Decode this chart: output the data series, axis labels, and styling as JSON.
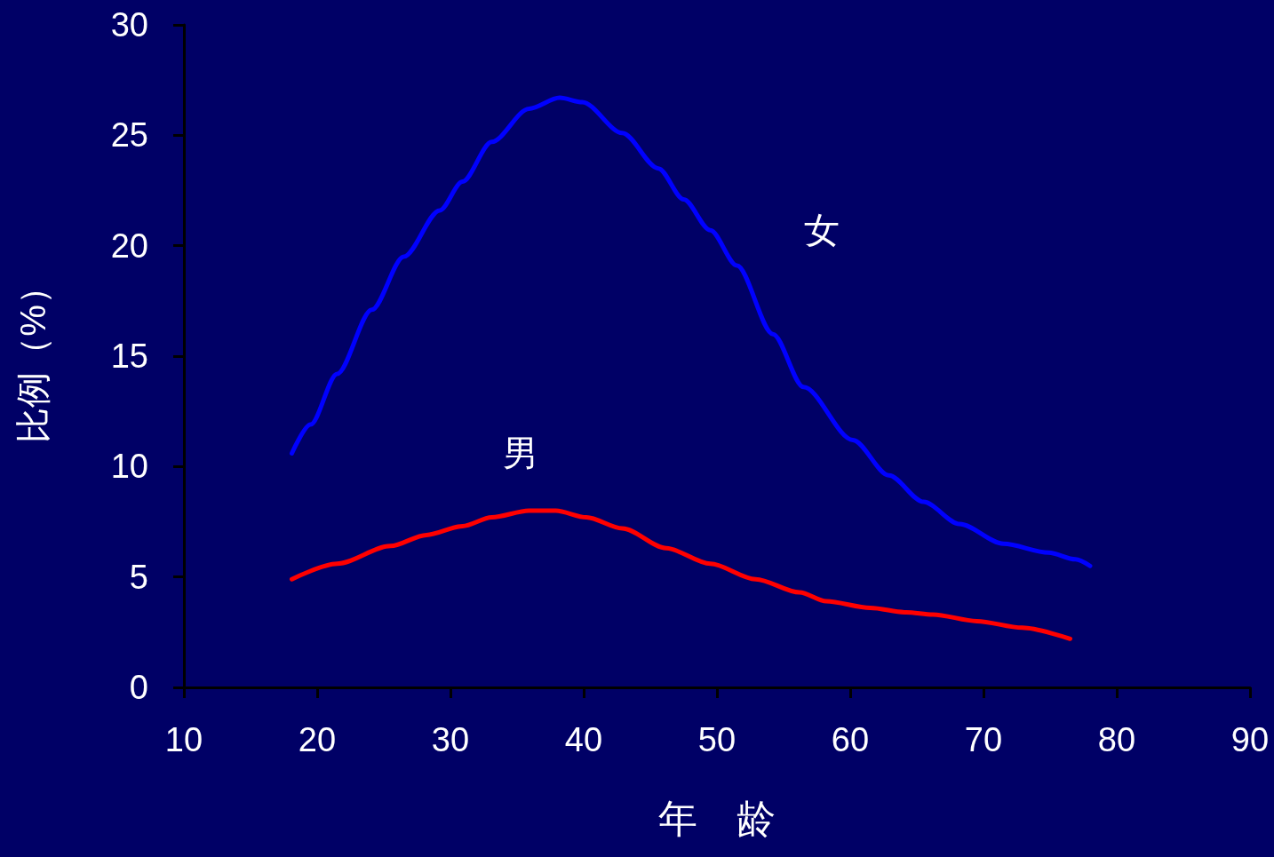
{
  "chart_data": {
    "type": "line",
    "xlabel": "年　龄",
    "ylabel": "比例（%）",
    "xlim": [
      10,
      90
    ],
    "xticks": [
      10,
      20,
      30,
      40,
      50,
      60,
      70,
      80,
      90
    ],
    "ylim": [
      0,
      30
    ],
    "yticks": [
      0,
      5,
      10,
      15,
      20,
      25,
      30
    ],
    "grid": false,
    "legend": false,
    "marker": "none",
    "line_style": "solid",
    "series": [
      {
        "name": "女",
        "color": "#0000ff",
        "x": [
          18.1,
          19.5,
          21.5,
          24.1,
          26.5,
          29.2,
          30.9,
          33.1,
          35.9,
          38.2,
          39.9,
          42.9,
          45.6,
          47.5,
          49.5,
          51.5,
          54.2,
          56.5,
          60.2,
          62.9,
          65.5,
          68.2,
          71.5,
          74.9,
          76.9,
          78.0
        ],
        "values": [
          10.6,
          11.9,
          14.2,
          17.1,
          19.5,
          21.6,
          22.9,
          24.7,
          26.2,
          26.7,
          26.5,
          25.1,
          23.5,
          22.1,
          20.7,
          19.1,
          16.0,
          13.6,
          11.2,
          9.6,
          8.4,
          7.4,
          6.5,
          6.1,
          5.8,
          5.5
        ]
      },
      {
        "name": "男",
        "color": "#ff0000",
        "x": [
          18.1,
          21.5,
          25.5,
          28.2,
          30.9,
          33.1,
          35.9,
          37.9,
          40.2,
          42.9,
          46.2,
          49.5,
          52.9,
          56.2,
          58.2,
          61.5,
          64.2,
          66.2,
          69.5,
          72.9,
          76.5
        ],
        "values": [
          4.9,
          5.6,
          6.4,
          6.9,
          7.3,
          7.7,
          8.0,
          8.0,
          7.7,
          7.2,
          6.3,
          5.6,
          4.9,
          4.3,
          3.9,
          3.6,
          3.4,
          3.3,
          3.0,
          2.7,
          2.2
        ]
      }
    ]
  }
}
